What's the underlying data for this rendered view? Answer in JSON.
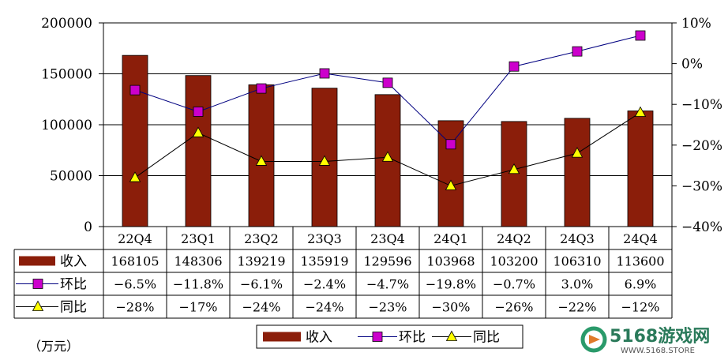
{
  "chart_data": {
    "type": "bar",
    "categories": [
      "22Q4",
      "23Q1",
      "23Q2",
      "23Q3",
      "23Q4",
      "24Q1",
      "24Q2",
      "24Q3",
      "24Q4"
    ],
    "series": [
      {
        "name": "收入",
        "kind": "bar",
        "axis": "left",
        "values": [
          168105,
          148306,
          139219,
          135919,
          129596,
          103968,
          103200,
          106310,
          113600
        ],
        "labels": [
          "168105",
          "148306",
          "139219",
          "135919",
          "129596",
          "103968",
          "103200",
          "106310",
          "113600"
        ]
      },
      {
        "name": "环比",
        "kind": "line",
        "axis": "right",
        "values": [
          -6.5,
          -11.8,
          -6.1,
          -2.4,
          -4.7,
          -19.8,
          -0.7,
          3.0,
          6.9
        ],
        "labels": [
          "−6.5%",
          "−11.8%",
          "−6.1%",
          "−2.4%",
          "−4.7%",
          "−19.8%",
          "−0.7%",
          "3.0%",
          "6.9%"
        ]
      },
      {
        "name": "同比",
        "kind": "line",
        "axis": "right",
        "values": [
          -28,
          -17,
          -24,
          -24,
          -23,
          -30,
          -26,
          -22,
          -12
        ],
        "labels": [
          "−28%",
          "−17%",
          "−24%",
          "−24%",
          "−23%",
          "−30%",
          "−26%",
          "−22%",
          "−12%"
        ]
      }
    ],
    "left_axis": {
      "ylim": [
        0,
        200000
      ],
      "ticks": [
        0,
        50000,
        100000,
        150000,
        200000
      ],
      "tick_labels": [
        "0",
        "50000",
        "100000",
        "150000",
        "200000"
      ]
    },
    "right_axis": {
      "ylim": [
        -40,
        10
      ],
      "ticks": [
        -40,
        -30,
        -20,
        -10,
        0,
        10
      ],
      "tick_labels": [
        "−40%",
        "−30%",
        "−20%",
        "−10%",
        "0%",
        "10%"
      ]
    },
    "grid": true,
    "legend_position": "bottom",
    "data_table": true,
    "unit_label": "（万元）"
  },
  "colors": {
    "bar": "#8b1e0a",
    "mom": "#cc00cc",
    "mom_line": "#000080",
    "yoy": "#ffff00",
    "yoy_line": "#000000"
  },
  "watermark": {
    "brand": "5168游戏网",
    "url": "WWW.5168.STORE"
  }
}
